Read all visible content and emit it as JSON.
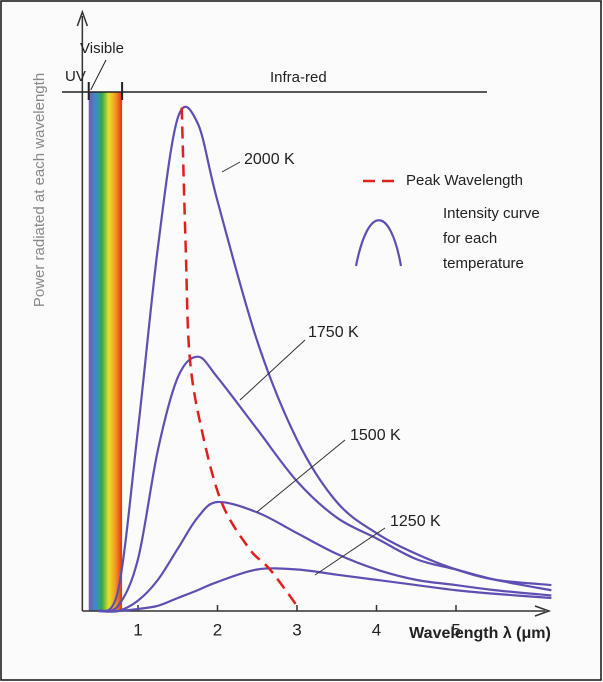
{
  "chart_data": {
    "type": "line",
    "xlabel": "Wavelength λ (μm)",
    "ylabel": "Power radiated at each wavelength",
    "xlim": [
      0.3,
      6.2
    ],
    "ylim": [
      0,
      100
    ],
    "xticks": [
      1,
      2,
      3,
      4,
      5
    ],
    "regions": [
      "UV",
      "Visible",
      "Infra-red"
    ],
    "spectrum": [
      0.38,
      0.8
    ],
    "x": [
      0.5,
      0.75,
      1,
      1.25,
      1.5,
      1.75,
      2,
      2.5,
      3,
      3.5,
      4,
      4.5,
      5,
      5.5,
      6.2
    ],
    "series": [
      {
        "name": "2000 K",
        "color": "#5e4fb3",
        "values": [
          0,
          4,
          35,
          70,
          95,
          94,
          79,
          52,
          33,
          21,
          15,
          11,
          8,
          6,
          5
        ]
      },
      {
        "name": "1750 K",
        "color": "#5e4fb3",
        "values": [
          0,
          1,
          10,
          31,
          45,
          49,
          45,
          35,
          25,
          18,
          14,
          10,
          8,
          6,
          4
        ]
      },
      {
        "name": "1500 K",
        "color": "#5e4fb3",
        "values": [
          0,
          0,
          2,
          6,
          12,
          18,
          21,
          19,
          15,
          11,
          8,
          6,
          5,
          4,
          3
        ]
      },
      {
        "name": "1250 K",
        "color": "#5e4fb3",
        "values": [
          0,
          0,
          0.4,
          1,
          2.5,
          4,
          5.6,
          8,
          8,
          7,
          6,
          5,
          4,
          3.3,
          2.5
        ]
      },
      {
        "name": "Peak Wavelength",
        "color": "#e0201c",
        "dashed": true,
        "x": [
          1.55,
          1.6,
          1.65,
          1.8,
          2.05,
          2.4,
          2.66,
          3.0
        ],
        "values": [
          97,
          70,
          49,
          35,
          21,
          12,
          8,
          1
        ]
      }
    ],
    "legend_note": [
      "Intensity curve",
      "for each",
      "temperature"
    ]
  }
}
